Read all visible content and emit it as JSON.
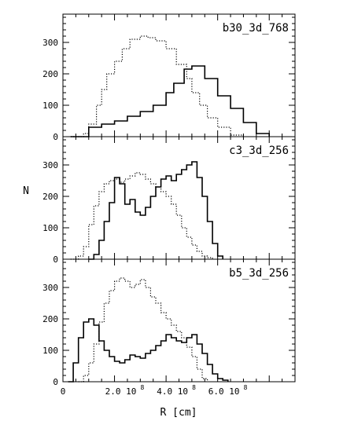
{
  "figure": {
    "ylabel": "N",
    "xlabel": "R [cm]"
  },
  "chart_data": [
    {
      "type": "line",
      "title": "b30_3d_768",
      "xlim": [
        0,
        900000000
      ],
      "ylim": [
        0,
        390
      ],
      "x_tick_labels": [
        "0",
        "2.0 10",
        "4.0 10",
        "6.0 10"
      ],
      "y_tick_values": [
        0,
        100,
        200,
        300
      ],
      "series": [
        {
          "style": "solid",
          "x": [
            30000000.0,
            100000000.0,
            150000000.0,
            200000000.0,
            250000000.0,
            300000000.0,
            350000000.0,
            400000000.0,
            430000000.0,
            470000000.0,
            500000000.0,
            550000000.0,
            600000000.0,
            650000000.0,
            700000000.0,
            750000000.0,
            800000000.0
          ],
          "y": [
            0,
            30,
            40,
            50,
            65,
            80,
            100,
            140,
            170,
            215,
            225,
            185,
            130,
            90,
            45,
            10,
            0
          ]
        },
        {
          "style": "dotted",
          "x": [
            30000000.0,
            80000000.0,
            100000000.0,
            130000000.0,
            150000000.0,
            170000000.0,
            200000000.0,
            230000000.0,
            260000000.0,
            300000000.0,
            330000000.0,
            360000000.0,
            400000000.0,
            440000000.0,
            480000000.0,
            500000000.0,
            530000000.0,
            560000000.0,
            600000000.0,
            650000000.0,
            700000000.0
          ],
          "y": [
            0,
            10,
            40,
            100,
            150,
            200,
            240,
            280,
            310,
            320,
            315,
            305,
            280,
            230,
            185,
            140,
            100,
            60,
            30,
            5,
            0
          ]
        }
      ]
    },
    {
      "type": "line",
      "title": "c3_3d_256",
      "xlim": [
        0,
        900000000
      ],
      "ylim": [
        0,
        390
      ],
      "x_tick_labels": [
        "0",
        "2.0 10",
        "4.0 10",
        "6.0 10"
      ],
      "y_tick_values": [
        0,
        100,
        200,
        300
      ],
      "series": [
        {
          "style": "solid",
          "x": [
            100000000.0,
            120000000.0,
            140000000.0,
            160000000.0,
            180000000.0,
            200000000.0,
            220000000.0,
            240000000.0,
            260000000.0,
            280000000.0,
            300000000.0,
            320000000.0,
            340000000.0,
            360000000.0,
            380000000.0,
            400000000.0,
            420000000.0,
            440000000.0,
            460000000.0,
            480000000.0,
            500000000.0,
            520000000.0,
            540000000.0,
            560000000.0,
            580000000.0,
            600000000.0,
            620000000.0
          ],
          "y": [
            0,
            15,
            60,
            120,
            180,
            260,
            240,
            175,
            190,
            150,
            140,
            165,
            200,
            230,
            255,
            265,
            250,
            270,
            285,
            300,
            310,
            260,
            200,
            120,
            50,
            10,
            0
          ]
        },
        {
          "style": "dotted",
          "x": [
            30000000.0,
            60000000.0,
            80000000.0,
            100000000.0,
            120000000.0,
            140000000.0,
            160000000.0,
            180000000.0,
            200000000.0,
            220000000.0,
            240000000.0,
            260000000.0,
            280000000.0,
            300000000.0,
            320000000.0,
            340000000.0,
            360000000.0,
            380000000.0,
            400000000.0,
            420000000.0,
            440000000.0,
            460000000.0,
            480000000.0,
            500000000.0,
            520000000.0,
            540000000.0,
            560000000.0,
            580000000.0
          ],
          "y": [
            0,
            10,
            40,
            110,
            170,
            215,
            240,
            250,
            255,
            245,
            255,
            265,
            275,
            270,
            255,
            240,
            230,
            215,
            200,
            175,
            140,
            100,
            70,
            45,
            25,
            10,
            5,
            0
          ]
        }
      ]
    },
    {
      "type": "line",
      "title": "b5_3d_256",
      "xlim": [
        0,
        900000000
      ],
      "ylim": [
        0,
        390
      ],
      "x_tick_labels": [
        "0",
        "2.0 10",
        "4.0 10",
        "6.0 10"
      ],
      "y_tick_values": [
        0,
        100,
        200,
        300
      ],
      "series": [
        {
          "style": "solid",
          "x": [
            20000000.0,
            40000000.0,
            60000000.0,
            80000000.0,
            100000000.0,
            120000000.0,
            140000000.0,
            160000000.0,
            180000000.0,
            200000000.0,
            220000000.0,
            240000000.0,
            260000000.0,
            280000000.0,
            300000000.0,
            320000000.0,
            340000000.0,
            360000000.0,
            380000000.0,
            400000000.0,
            420000000.0,
            440000000.0,
            460000000.0,
            480000000.0,
            500000000.0,
            520000000.0,
            540000000.0,
            560000000.0,
            580000000.0,
            600000000.0,
            620000000.0,
            640000000.0
          ],
          "y": [
            0,
            60,
            140,
            190,
            200,
            180,
            130,
            100,
            80,
            65,
            60,
            70,
            85,
            80,
            75,
            90,
            100,
            115,
            130,
            150,
            140,
            130,
            125,
            140,
            150,
            120,
            90,
            55,
            25,
            10,
            5,
            0
          ]
        },
        {
          "style": "dotted",
          "x": [
            60000000.0,
            80000000.0,
            100000000.0,
            120000000.0,
            140000000.0,
            160000000.0,
            180000000.0,
            200000000.0,
            220000000.0,
            240000000.0,
            260000000.0,
            280000000.0,
            300000000.0,
            320000000.0,
            340000000.0,
            360000000.0,
            380000000.0,
            400000000.0,
            420000000.0,
            440000000.0,
            460000000.0,
            480000000.0,
            500000000.0,
            520000000.0,
            540000000.0,
            560000000.0
          ],
          "y": [
            0,
            20,
            60,
            120,
            190,
            250,
            290,
            320,
            330,
            320,
            300,
            310,
            325,
            300,
            270,
            250,
            220,
            200,
            180,
            160,
            140,
            110,
            80,
            40,
            10,
            0
          ]
        }
      ]
    }
  ]
}
